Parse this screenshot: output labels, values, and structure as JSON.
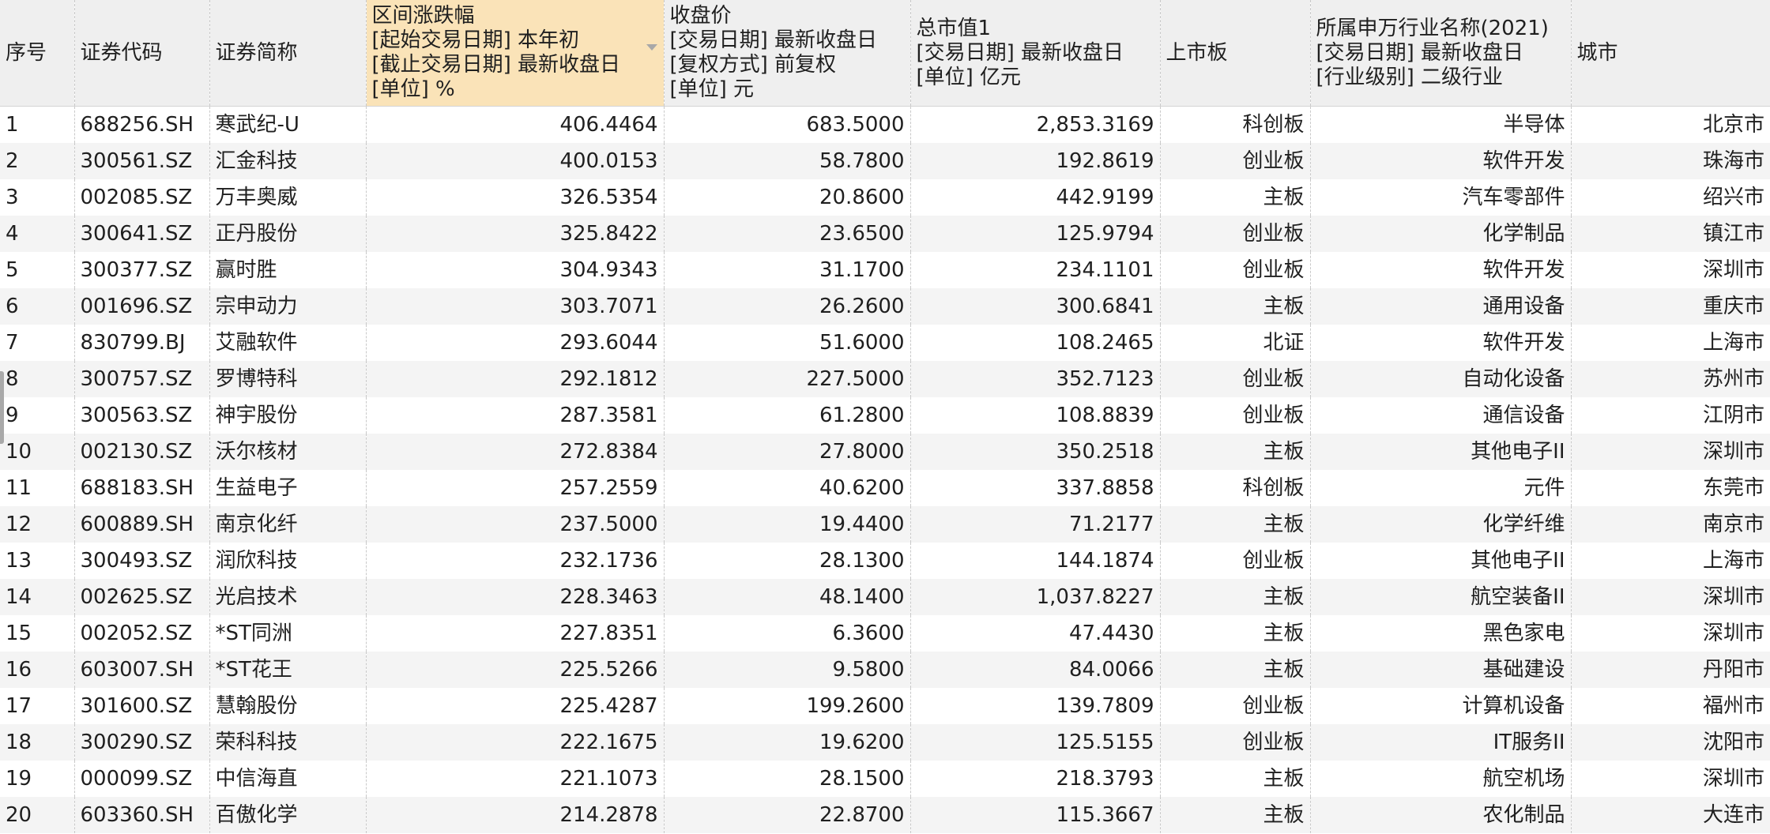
{
  "columns": [
    {
      "lines": [
        "序号"
      ]
    },
    {
      "lines": [
        "证券代码"
      ]
    },
    {
      "lines": [
        "证券简称"
      ]
    },
    {
      "lines": [
        "区间涨跌幅",
        "[起始交易日期] 本年初",
        "[截止交易日期] 最新收盘日",
        "[单位] %"
      ]
    },
    {
      "lines": [
        "收盘价",
        "[交易日期] 最新收盘日",
        "[复权方式] 前复权",
        "[单位] 元"
      ]
    },
    {
      "lines": [
        "总市值1",
        "[交易日期] 最新收盘日",
        "[单位] 亿元"
      ]
    },
    {
      "lines": [
        "上市板"
      ]
    },
    {
      "lines": [
        "所属申万行业名称(2021)",
        "[交易日期] 最新收盘日",
        "[行业级别] 二级行业"
      ]
    },
    {
      "lines": [
        "城市"
      ]
    }
  ],
  "rows": [
    [
      "1",
      "688256.SH",
      "寒武纪-U",
      "406.4464",
      "683.5000",
      "2,853.3169",
      "科创板",
      "半导体",
      "北京市"
    ],
    [
      "2",
      "300561.SZ",
      "汇金科技",
      "400.0153",
      "58.7800",
      "192.8619",
      "创业板",
      "软件开发",
      "珠海市"
    ],
    [
      "3",
      "002085.SZ",
      "万丰奥威",
      "326.5354",
      "20.8600",
      "442.9199",
      "主板",
      "汽车零部件",
      "绍兴市"
    ],
    [
      "4",
      "300641.SZ",
      "正丹股份",
      "325.8422",
      "23.6500",
      "125.9794",
      "创业板",
      "化学制品",
      "镇江市"
    ],
    [
      "5",
      "300377.SZ",
      "赢时胜",
      "304.9343",
      "31.1700",
      "234.1101",
      "创业板",
      "软件开发",
      "深圳市"
    ],
    [
      "6",
      "001696.SZ",
      "宗申动力",
      "303.7071",
      "26.2600",
      "300.6841",
      "主板",
      "通用设备",
      "重庆市"
    ],
    [
      "7",
      "830799.BJ",
      "艾融软件",
      "293.6044",
      "51.6000",
      "108.2465",
      "北证",
      "软件开发",
      "上海市"
    ],
    [
      "8",
      "300757.SZ",
      "罗博特科",
      "292.1812",
      "227.5000",
      "352.7123",
      "创业板",
      "自动化设备",
      "苏州市"
    ],
    [
      "9",
      "300563.SZ",
      "神宇股份",
      "287.3581",
      "61.2800",
      "108.8839",
      "创业板",
      "通信设备",
      "江阴市"
    ],
    [
      "10",
      "002130.SZ",
      "沃尔核材",
      "272.8384",
      "27.8000",
      "350.2518",
      "主板",
      "其他电子II",
      "深圳市"
    ],
    [
      "11",
      "688183.SH",
      "生益电子",
      "257.2559",
      "40.6200",
      "337.8858",
      "科创板",
      "元件",
      "东莞市"
    ],
    [
      "12",
      "600889.SH",
      "南京化纤",
      "237.5000",
      "19.4400",
      "71.2177",
      "主板",
      "化学纤维",
      "南京市"
    ],
    [
      "13",
      "300493.SZ",
      "润欣科技",
      "232.1736",
      "28.1300",
      "144.1874",
      "创业板",
      "其他电子II",
      "上海市"
    ],
    [
      "14",
      "002625.SZ",
      "光启技术",
      "228.3463",
      "48.1400",
      "1,037.8227",
      "主板",
      "航空装备II",
      "深圳市"
    ],
    [
      "15",
      "002052.SZ",
      "*ST同洲",
      "227.8351",
      "6.3600",
      "47.4430",
      "主板",
      "黑色家电",
      "深圳市"
    ],
    [
      "16",
      "603007.SH",
      "*ST花王",
      "225.5266",
      "9.5800",
      "84.0066",
      "主板",
      "基础建设",
      "丹阳市"
    ],
    [
      "17",
      "301600.SZ",
      "慧翰股份",
      "225.4287",
      "199.2600",
      "139.7809",
      "创业板",
      "计算机设备",
      "福州市"
    ],
    [
      "18",
      "300290.SZ",
      "荣科科技",
      "222.1675",
      "19.6200",
      "125.5155",
      "创业板",
      "IT服务II",
      "沈阳市"
    ],
    [
      "19",
      "000099.SZ",
      "中信海直",
      "221.1073",
      "28.1500",
      "218.3793",
      "主板",
      "航空机场",
      "深圳市"
    ],
    [
      "20",
      "603360.SH",
      "百傲化学",
      "214.2878",
      "22.8700",
      "115.3667",
      "主板",
      "农化制品",
      "大连市"
    ]
  ]
}
